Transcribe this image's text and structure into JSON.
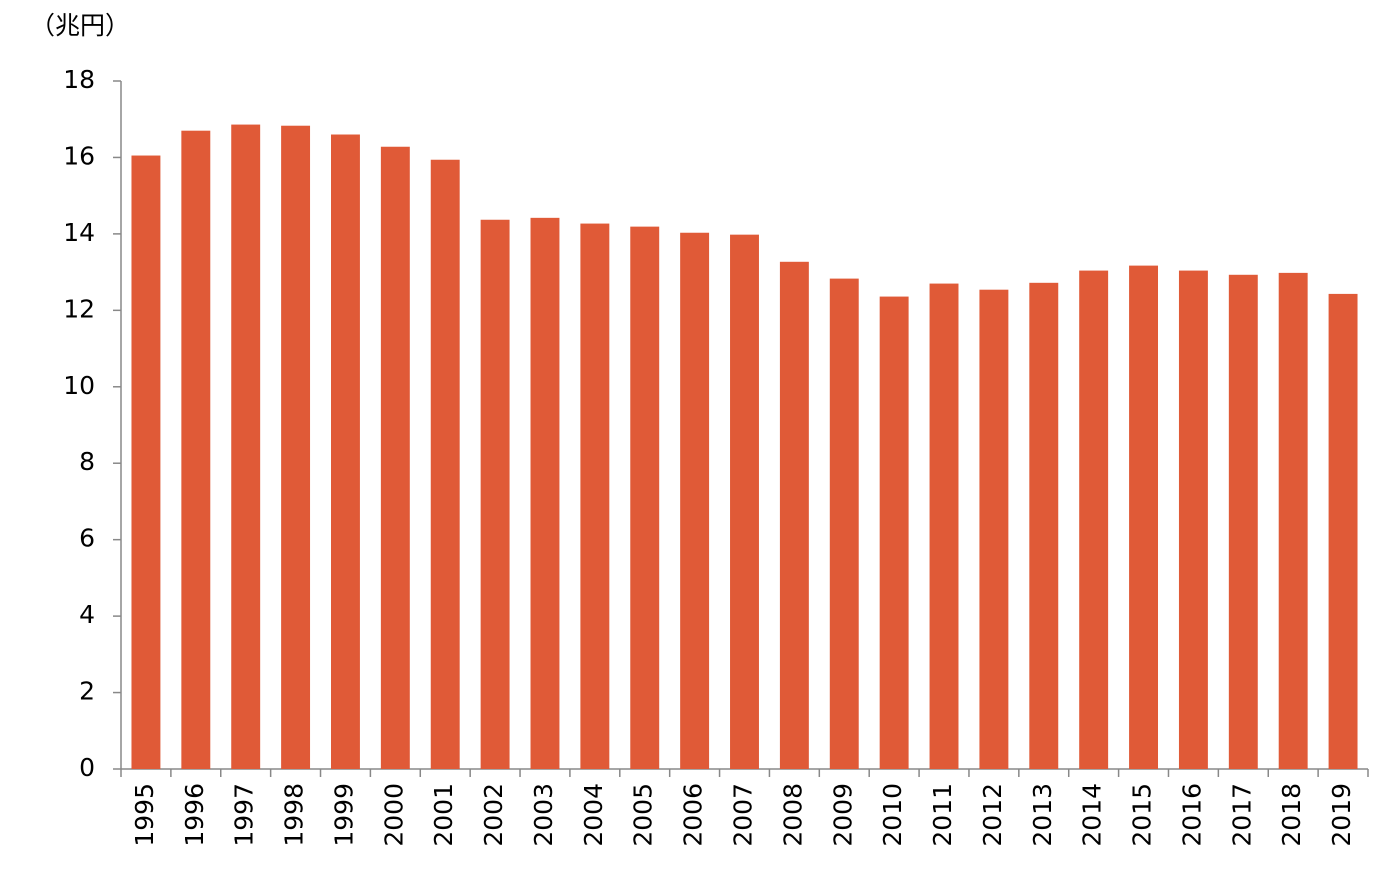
{
  "chart_data": {
    "type": "bar",
    "y_label": "（兆円）",
    "categories": [
      "1995",
      "1996",
      "1997",
      "1998",
      "1999",
      "2000",
      "2001",
      "2002",
      "2003",
      "2004",
      "2005",
      "2006",
      "2007",
      "2008",
      "2009",
      "2010",
      "2011",
      "2012",
      "2013",
      "2014",
      "2015",
      "2016",
      "2017",
      "2018",
      "2019"
    ],
    "values": [
      16.05,
      16.7,
      16.86,
      16.83,
      16.6,
      16.28,
      15.94,
      14.37,
      14.42,
      14.27,
      14.19,
      14.03,
      13.98,
      13.27,
      12.83,
      12.36,
      12.7,
      12.54,
      12.72,
      13.04,
      13.17,
      13.04,
      12.93,
      12.98,
      12.43
    ],
    "color": "#e05a37",
    "ylim": [
      0,
      18
    ],
    "yticks": [
      0,
      2,
      4,
      6,
      8,
      10,
      12,
      14,
      16,
      18
    ],
    "grid": false
  }
}
